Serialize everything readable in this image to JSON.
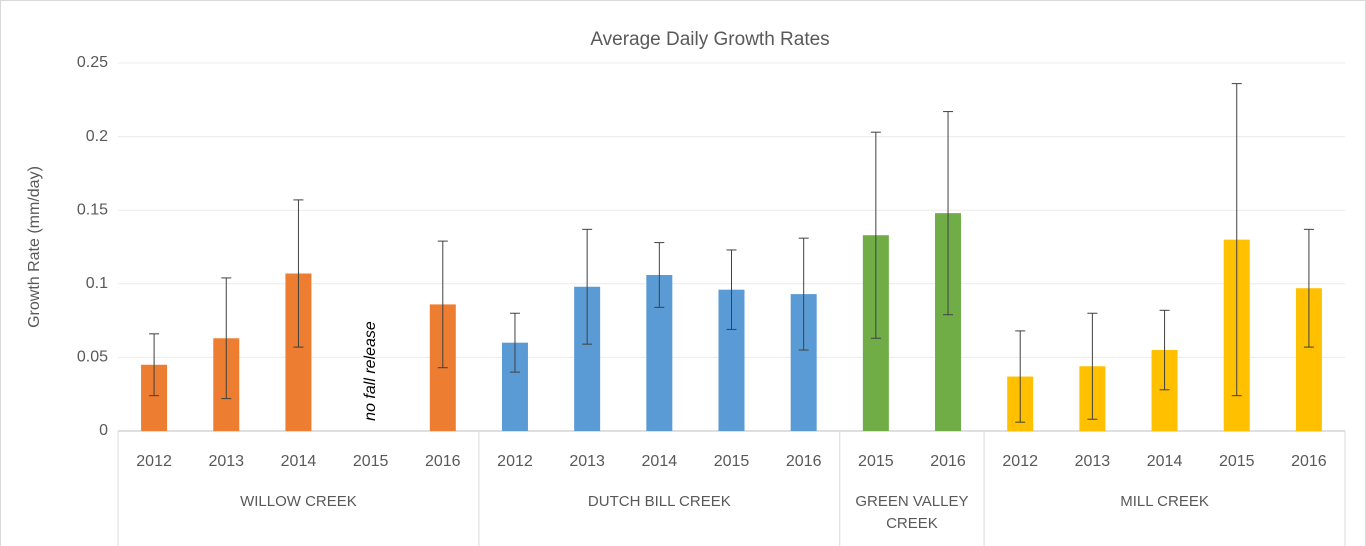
{
  "chart_data": {
    "type": "bar",
    "title": "Average Daily Growth Rates",
    "y_label": "Growth Rate (mm/day)",
    "ylim": [
      0,
      0.25
    ],
    "yticks": [
      0,
      0.05,
      0.1,
      0.15,
      0.2,
      0.25
    ],
    "grid": true,
    "groups": [
      {
        "name": "WILLOW CREEK",
        "color": "#ed7d31",
        "categories": [
          "2012",
          "2013",
          "2014",
          "2015",
          "2016"
        ],
        "values": [
          0.045,
          0.063,
          0.107,
          null,
          0.086
        ],
        "errors": [
          0.021,
          0.041,
          0.05,
          null,
          0.043
        ]
      },
      {
        "name": "DUTCH BILL CREEK",
        "color": "#5b9bd5",
        "categories": [
          "2012",
          "2013",
          "2014",
          "2015",
          "2016"
        ],
        "values": [
          0.06,
          0.098,
          0.106,
          0.096,
          0.093
        ],
        "errors": [
          0.02,
          0.039,
          0.022,
          0.027,
          0.038
        ]
      },
      {
        "name": "GREEN VALLEY CREEK",
        "color": "#70ad47",
        "categories": [
          "2015",
          "2016"
        ],
        "values": [
          0.133,
          0.148
        ],
        "errors": [
          0.07,
          0.069
        ]
      },
      {
        "name": "MILL CREEK",
        "color": "#ffc000",
        "categories": [
          "2012",
          "2013",
          "2014",
          "2015",
          "2016"
        ],
        "values": [
          0.037,
          0.044,
          0.055,
          0.13,
          0.097
        ],
        "errors": [
          0.031,
          0.036,
          0.027,
          0.106,
          0.04
        ]
      }
    ],
    "annotations": [
      {
        "text": "no fall release",
        "group": 0,
        "index": 3
      }
    ]
  }
}
